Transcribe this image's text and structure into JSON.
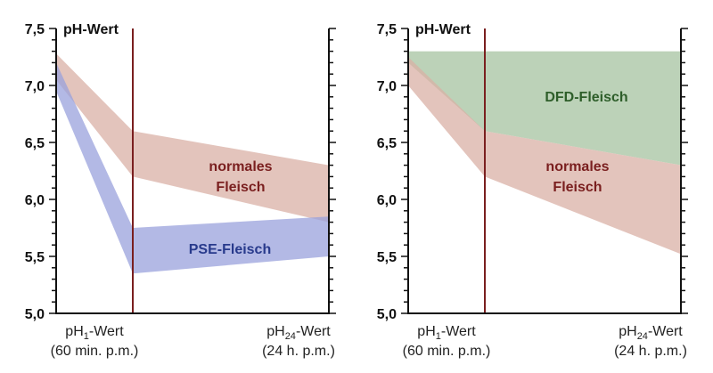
{
  "colors": {
    "normal": "#d9b0a6",
    "pse": "#9aa2dc",
    "dfd": "#a6c3a0",
    "normal_text": "#7a1f1f",
    "pse_text": "#283a8c",
    "dfd_text": "#2e5e2a",
    "divider": "#7a1f1f",
    "axis": "#111111"
  },
  "chart_data": [
    {
      "type": "area",
      "ylabel": "pH-Wert",
      "ylim": [
        5.0,
        7.5
      ],
      "yticks": [
        "5,0",
        "5,5",
        "6,0",
        "6,5",
        "7,0",
        "7,5"
      ],
      "categories": [
        {
          "sub_prefix": "pH",
          "sub": "1",
          "suffix": "-Wert",
          "note": "(60 min. p.m.)"
        },
        {
          "sub_prefix": "pH",
          "sub": "24",
          "suffix": "-Wert",
          "note": "(24 h. p.m.)"
        }
      ],
      "series": [
        {
          "name": "normales Fleisch",
          "label_lines": [
            "normales",
            "Fleisch"
          ],
          "color_key": "normal",
          "x": [
            0,
            1,
            2
          ],
          "upper": [
            7.28,
            6.6,
            6.3
          ],
          "lower": [
            7.05,
            6.2,
            5.8
          ]
        },
        {
          "name": "PSE-Fleisch",
          "label_lines": [
            "PSE-Fleisch"
          ],
          "color_key": "pse",
          "x": [
            0,
            1,
            2
          ],
          "upper": [
            7.2,
            5.75,
            5.85
          ],
          "lower": [
            6.95,
            5.35,
            5.5
          ]
        }
      ]
    },
    {
      "type": "area",
      "ylabel": "pH-Wert",
      "ylim": [
        5.0,
        7.5
      ],
      "yticks": [
        "5,0",
        "5,5",
        "6,0",
        "6,5",
        "7,0",
        "7,5"
      ],
      "categories": [
        {
          "sub_prefix": "pH",
          "sub": "1",
          "suffix": "-Wert",
          "note": "(60 min. p.m.)"
        },
        {
          "sub_prefix": "pH",
          "sub": "24",
          "suffix": "-Wert",
          "note": "(24 h. p.m.)"
        }
      ],
      "series": [
        {
          "name": "DFD-Fleisch",
          "label_lines": [
            "DFD-Fleisch"
          ],
          "color_key": "dfd",
          "x": [
            0,
            1,
            2
          ],
          "upper": [
            7.3,
            7.3,
            7.3
          ],
          "lower": [
            7.2,
            6.6,
            6.3
          ]
        },
        {
          "name": "normales Fleisch",
          "label_lines": [
            "normales",
            "Fleisch"
          ],
          "color_key": "normal",
          "x": [
            0,
            1,
            2
          ],
          "upper": [
            7.25,
            6.6,
            6.3
          ],
          "lower": [
            7.0,
            6.2,
            5.52
          ]
        }
      ]
    }
  ]
}
